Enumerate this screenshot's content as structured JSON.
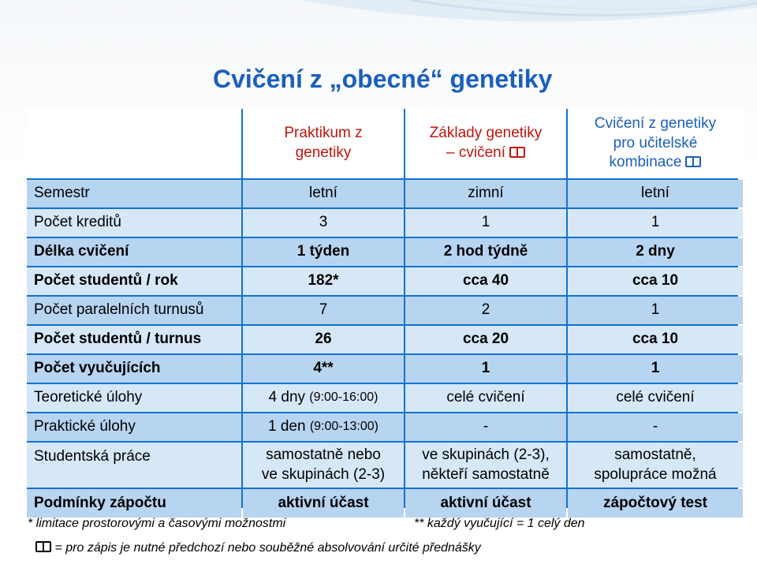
{
  "title": "Cvičení z „obecné“ genetiky",
  "columns": [
    {
      "line1": "Praktikum z",
      "line2": "genetiky",
      "line3": "",
      "book": false,
      "color": "#c1150c"
    },
    {
      "line1": "Základy genetiky",
      "line2": "– cvičení",
      "line3": "",
      "book": true,
      "color": "#c1150c"
    },
    {
      "line1": "Cvičení z genetiky",
      "line2": "pro učitelské",
      "line3": "kombinace",
      "book": true,
      "color": "#1a5fbe"
    }
  ],
  "rows": [
    {
      "label": "Semestr",
      "values": [
        "letní",
        "zimní",
        "letní"
      ],
      "bold": false,
      "shade": "dark"
    },
    {
      "label": "Počet kreditů",
      "values": [
        "3",
        "1",
        "1"
      ],
      "bold": false,
      "shade": "light"
    },
    {
      "label": "Délka cvičení",
      "values": [
        "1 týden",
        "2 hod týdně",
        "2 dny"
      ],
      "bold": true,
      "shade": "dark"
    },
    {
      "label": "Počet studentů / rok",
      "values": [
        "182*",
        "cca 40",
        "cca 10"
      ],
      "bold": true,
      "shade": "light"
    },
    {
      "label": "Počet paralelních turnusů",
      "values": [
        "7",
        "2",
        "1"
      ],
      "bold": false,
      "shade": "dark"
    },
    {
      "label": "Počet studentů / turnus",
      "values": [
        "26",
        "cca 20",
        "cca 10"
      ],
      "bold": true,
      "shade": "light"
    },
    {
      "label": "Počet vyučujících",
      "values": [
        "4**",
        "1",
        "1"
      ],
      "bold": true,
      "shade": "dark"
    },
    {
      "label": "Teoretické úlohy",
      "value_main": "4 dny",
      "value_small": "(9:00-16:00)",
      "values": [
        "celé cvičení",
        "celé cvičení"
      ],
      "bold": false,
      "shade": "light"
    },
    {
      "label": "Praktické úlohy",
      "value_main": "1 den",
      "value_small": "(9:00-13:00)",
      "values": [
        "-",
        "-"
      ],
      "bold": false,
      "shade": "dark"
    },
    {
      "label": "Studentská práce",
      "values_lines": [
        [
          "samostatně nebo",
          "ve skupinách (2-3)"
        ],
        [
          "ve skupinách (2-3),",
          "někteří samostatně"
        ],
        [
          "samostatně,",
          "spolupráce možná"
        ]
      ],
      "bold": false,
      "shade": "light"
    },
    {
      "label": "Podmínky zápočtu",
      "values": [
        "aktivní účast",
        "aktivní účast",
        "zápočtový test"
      ],
      "bold": true,
      "shade": "dark"
    }
  ],
  "footnotes": {
    "note1": "* limitace prostorovými a časovými možnostmi",
    "note2": "** každý vyučující = 1 celý den",
    "note3": "= pro zápis je nutné předchozí nebo souběžné absolvování určité přednášky"
  },
  "colors": {
    "title": "#1a5fbe",
    "border": "#1173d0",
    "row_dark": "#b7d4f1",
    "row_light": "#d6e7f8",
    "head_red": "#c1150c"
  },
  "icons": {
    "prerequisite": "book-icon"
  }
}
